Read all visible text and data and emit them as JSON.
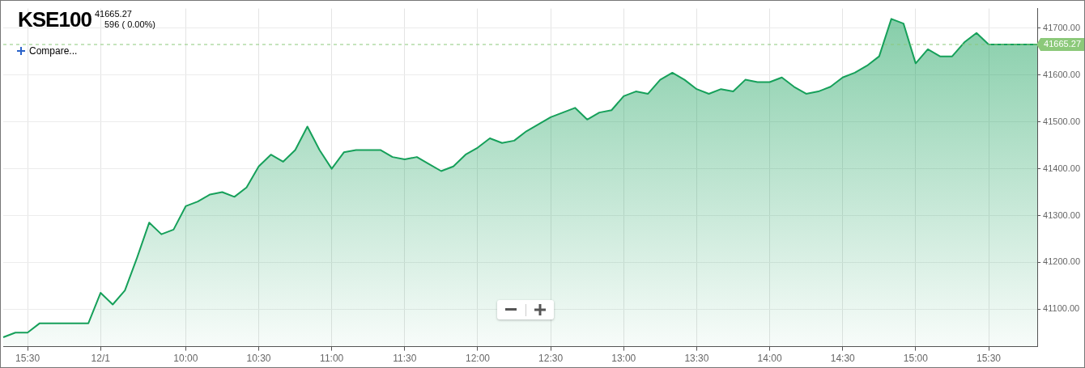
{
  "chart_data": {
    "type": "area",
    "title": "KSE100",
    "subtitle": "41665.27",
    "annotations": [
      "596 ( 0.00%)",
      "Compare..."
    ],
    "categories": [
      null,
      null,
      "15:30",
      null,
      null,
      null,
      null,
      null,
      "12/1",
      null,
      null,
      null,
      null,
      null,
      null,
      "10:00",
      null,
      null,
      null,
      null,
      null,
      "10:30",
      null,
      null,
      null,
      null,
      null,
      "11:00",
      null,
      null,
      null,
      null,
      null,
      "11:30",
      null,
      null,
      null,
      null,
      null,
      "12:00",
      null,
      null,
      null,
      null,
      null,
      "12:30",
      null,
      null,
      null,
      null,
      null,
      "13:00",
      null,
      null,
      null,
      null,
      null,
      "13:30",
      null,
      null,
      null,
      null,
      null,
      "14:00",
      null,
      null,
      null,
      null,
      null,
      "14:30",
      null,
      null,
      null,
      null,
      null,
      "15:00",
      null,
      null,
      null,
      null,
      null,
      "15:30",
      null,
      null,
      null,
      null
    ],
    "series": [
      {
        "color": "#16a05a",
        "values": [
          41040,
          41050,
          41050,
          41070,
          41070,
          41070,
          41070,
          41070,
          41135,
          41110,
          41140,
          41210,
          41285,
          41260,
          41270,
          41320,
          41330,
          41345,
          41350,
          41340,
          41360,
          41405,
          41430,
          41415,
          41440,
          41490,
          41440,
          41400,
          41435,
          41440,
          41440,
          41440,
          41425,
          41420,
          41425,
          41410,
          41395,
          41405,
          41430,
          41445,
          41465,
          41455,
          41460,
          41480,
          41495,
          41510,
          41520,
          41530,
          41505,
          41520,
          41525,
          41555,
          41565,
          41560,
          41590,
          41605,
          41590,
          41570,
          41560,
          41570,
          41565,
          41590,
          41585,
          41585,
          41595,
          41575,
          41560,
          41565,
          41575,
          41595,
          41605,
          41620,
          41640,
          41720,
          41710,
          41625,
          41655,
          41640,
          41640,
          41670,
          41690,
          41665.27,
          41665.27,
          41665.27,
          41665.27,
          41665.27
        ]
      }
    ],
    "ylim": [
      41020,
      41742
    ],
    "yticks": [
      {
        "value": 41100,
        "label": "41100.00"
      },
      {
        "value": 41200,
        "label": "41200.00"
      },
      {
        "value": 41300,
        "label": "41300.00"
      },
      {
        "value": 41400,
        "label": "41400.00"
      },
      {
        "value": 41500,
        "label": "41500.00"
      },
      {
        "value": 41600,
        "label": "41600.00"
      },
      {
        "value": 41700,
        "label": "41700.00"
      }
    ],
    "ref_lines": [
      {
        "axis": "y",
        "value": 41665.27,
        "label": "41665.27",
        "color": "#8cc97a",
        "line_style": "dashed"
      }
    ],
    "grid": true,
    "legend": false,
    "marker": "none"
  }
}
